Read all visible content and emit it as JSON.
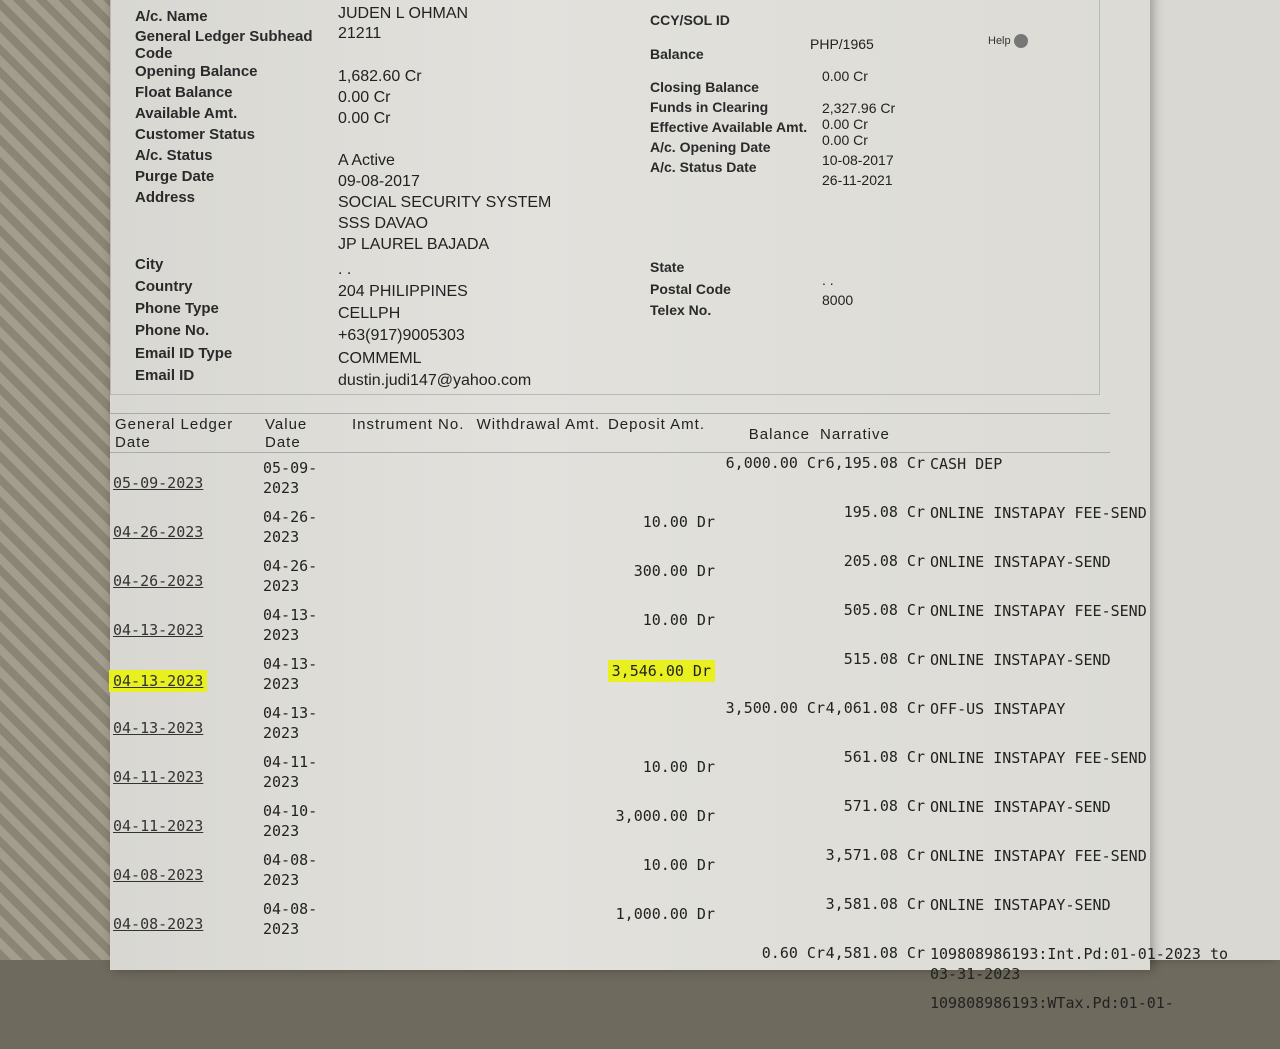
{
  "account": {
    "left": [
      {
        "label": "A/c. Name",
        "value": "JUDEN L OHMAN"
      },
      {
        "label": "General Ledger Subhead Code",
        "value": "21211"
      },
      {
        "label": "Opening Balance",
        "value": "1,682.60 Cr"
      },
      {
        "label": "Float Balance",
        "value": "0.00 Cr"
      },
      {
        "label": "Available Amt.",
        "value": "0.00 Cr"
      },
      {
        "label": "Customer Status",
        "value": ""
      },
      {
        "label": "A/c. Status",
        "value": "A Active"
      },
      {
        "label": "Purge Date",
        "value": "09-08-2017"
      },
      {
        "label": "Address",
        "value": "SOCIAL SECURITY SYSTEM"
      },
      {
        "label": "",
        "value": "SSS DAVAO"
      },
      {
        "label": "",
        "value": "JP LAUREL BAJADA"
      },
      {
        "label": "City",
        "value": ". ."
      },
      {
        "label": "Country",
        "value": "204 PHILIPPINES"
      },
      {
        "label": "Phone Type",
        "value": "CELLPH"
      },
      {
        "label": "Phone No.",
        "value": "+63(917)9005303"
      },
      {
        "label": "Email ID Type",
        "value": "COMMEML"
      },
      {
        "label": "Email ID",
        "value": "dustin.judi147@yahoo.com"
      }
    ],
    "right": [
      {
        "label": "CCY/SOL ID",
        "value": "PHP/1965"
      },
      {
        "label": "Balance",
        "value": "0.00 Cr"
      },
      {
        "label": "Closing Balance",
        "value": "2,327.96 Cr"
      },
      {
        "label": "Funds in Clearing",
        "value": "0.00 Cr"
      },
      {
        "label": "Effective Available Amt.",
        "value": "0.00 Cr"
      },
      {
        "label": "A/c. Opening Date",
        "value": "10-08-2017"
      },
      {
        "label": "A/c. Status Date",
        "value": "26-11-2021"
      },
      {
        "label": "State",
        "value": ". ."
      },
      {
        "label": "Postal Code",
        "value": "8000"
      },
      {
        "label": "Telex No.",
        "value": ""
      }
    ],
    "help": "Help"
  },
  "table": {
    "headers": [
      "General Ledger Date",
      "Value Date",
      "Instrument No.",
      "Withdrawal Amt.",
      "Deposit Amt.",
      "Balance",
      "Narrative"
    ],
    "rows": [
      {
        "gl": "05-09-2023",
        "vd": "05-09-2023",
        "wd": "",
        "dp": "6,000.00 Cr",
        "bal": "6,195.08 Cr",
        "nar": "CASH DEP"
      },
      {
        "gl": "04-26-2023",
        "vd": "04-26-2023",
        "wd": "10.00 Dr",
        "dp": "",
        "bal": "195.08 Cr",
        "nar": "ONLINE INSTAPAY FEE-SEND"
      },
      {
        "gl": "04-26-2023",
        "vd": "04-26-2023",
        "wd": "300.00 Dr",
        "dp": "",
        "bal": "205.08 Cr",
        "nar": "ONLINE INSTAPAY-SEND"
      },
      {
        "gl": "04-13-2023",
        "vd": "04-13-2023",
        "wd": "10.00 Dr",
        "dp": "",
        "bal": "505.08 Cr",
        "nar": "ONLINE INSTAPAY FEE-SEND"
      },
      {
        "gl": "04-13-2023",
        "vd": "04-13-2023",
        "wd": "3,546.00 Dr",
        "dp": "",
        "bal": "515.08 Cr",
        "nar": "ONLINE INSTAPAY-SEND",
        "highlight": true
      },
      {
        "gl": "04-13-2023",
        "vd": "04-13-2023",
        "wd": "",
        "dp": "3,500.00 Cr",
        "bal": "4,061.08 Cr",
        "nar": "OFF-US INSTAPAY"
      },
      {
        "gl": "04-11-2023",
        "vd": "04-11-2023",
        "wd": "10.00 Dr",
        "dp": "",
        "bal": "561.08 Cr",
        "nar": "ONLINE INSTAPAY FEE-SEND"
      },
      {
        "gl": "04-11-2023",
        "vd": "04-10-2023",
        "wd": "3,000.00 Dr",
        "dp": "",
        "bal": "571.08 Cr",
        "nar": "ONLINE INSTAPAY-SEND"
      },
      {
        "gl": "04-08-2023",
        "vd": "04-08-2023",
        "wd": "10.00 Dr",
        "dp": "",
        "bal": "3,571.08 Cr",
        "nar": "ONLINE INSTAPAY FEE-SEND"
      },
      {
        "gl": "04-08-2023",
        "vd": "04-08-2023",
        "wd": "1,000.00 Dr",
        "dp": "",
        "bal": "3,581.08 Cr",
        "nar": "ONLINE INSTAPAY-SEND"
      },
      {
        "gl": "",
        "vd": "",
        "wd": "",
        "dp": "0.60 Cr",
        "bal": "4,581.08 Cr",
        "nar": "109808986193:Int.Pd:01-01-2023 to 03-31-2023"
      },
      {
        "gl": "",
        "vd": "",
        "wd": "",
        "dp": "",
        "bal": "",
        "nar": "109808986193:WTax.Pd:01-01-"
      }
    ]
  },
  "colors": {
    "highlight": "#e8f020"
  }
}
